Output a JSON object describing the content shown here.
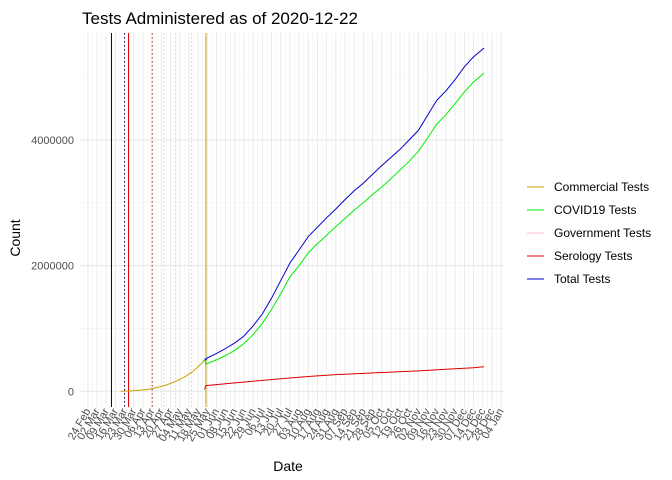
{
  "chart_data": {
    "type": "line",
    "title": "Tests Administered as of 2020-12-22",
    "xlabel": "Date",
    "ylabel": "Count",
    "grid": true,
    "legend_position": "right",
    "xlim": [
      "2020-02-24",
      "2021-01-04"
    ],
    "ylim": [
      -250000,
      5700000
    ],
    "y_ticks": [
      0,
      2000000,
      4000000
    ],
    "x_ticks": [
      "24 Feb",
      "02 Mar",
      "09 Mar",
      "16 Mar",
      "23 Mar",
      "30 Mar",
      "06 Apr",
      "13 Apr",
      "20 Apr",
      "27 Apr",
      "04 May",
      "11 May",
      "18 May",
      "25 May",
      "01 Jun",
      "08 Jun",
      "15 Jun",
      "22 Jun",
      "29 Jun",
      "06 Jul",
      "13 Jul",
      "20 Jul",
      "27 Jul",
      "03 Aug",
      "10 Aug",
      "17 Aug",
      "24 Aug",
      "31 Aug",
      "07 Sep",
      "14 Sep",
      "21 Sep",
      "28 Sep",
      "05 Oct",
      "12 Oct",
      "19 Oct",
      "26 Oct",
      "02 Nov",
      "09 Nov",
      "16 Nov",
      "23 Nov",
      "30 Nov",
      "07 Dec",
      "14 Dec",
      "21 Dec",
      "28 Dec",
      "04 Jan"
    ],
    "series": [
      {
        "name": "Commercial Tests",
        "color": "#c8a000",
        "x": [
          "2020-03-20",
          "2020-03-27",
          "2020-04-03",
          "2020-04-10",
          "2020-04-17",
          "2020-04-24",
          "2020-05-01",
          "2020-05-08",
          "2020-05-15",
          "2020-05-20",
          "2020-05-23"
        ],
        "values": [
          0,
          5000,
          15000,
          30000,
          60000,
          100000,
          160000,
          230000,
          330000,
          430000,
          500000
        ]
      },
      {
        "name": "COVID19 Tests",
        "color": "#00ee00",
        "x": [
          "2020-05-23",
          "2020-05-24",
          "2020-05-25",
          "2020-06-01",
          "2020-06-08",
          "2020-06-15",
          "2020-06-22",
          "2020-06-29",
          "2020-07-06",
          "2020-07-13",
          "2020-07-20",
          "2020-07-27",
          "2020-08-03",
          "2020-08-10",
          "2020-08-17",
          "2020-08-24",
          "2020-08-31",
          "2020-09-07",
          "2020-09-14",
          "2020-09-21",
          "2020-09-28",
          "2020-10-05",
          "2020-10-12",
          "2020-10-19",
          "2020-10-26",
          "2020-11-02",
          "2020-11-09",
          "2020-11-16",
          "2020-11-23",
          "2020-11-30",
          "2020-12-07",
          "2020-12-14",
          "2020-12-22"
        ],
        "values": [
          500000,
          430000,
          440000,
          500000,
          570000,
          650000,
          760000,
          900000,
          1080000,
          1300000,
          1550000,
          1820000,
          2000000,
          2200000,
          2350000,
          2480000,
          2620000,
          2750000,
          2880000,
          3000000,
          3130000,
          3250000,
          3380000,
          3520000,
          3660000,
          3820000,
          4030000,
          4250000,
          4400000,
          4580000,
          4760000,
          4920000,
          5060000
        ]
      },
      {
        "name": "Government Tests",
        "color": "#ffc0cb",
        "x": [],
        "values": []
      },
      {
        "name": "Serology Tests",
        "color": "#dd0000",
        "x": [
          "2020-05-23",
          "2020-05-24",
          "2020-06-08",
          "2020-06-29",
          "2020-07-20",
          "2020-08-10",
          "2020-08-31",
          "2020-09-21",
          "2020-10-12",
          "2020-11-02",
          "2020-11-23",
          "2020-12-14",
          "2020-12-22"
        ],
        "values": [
          30000,
          90000,
          120000,
          160000,
          200000,
          235000,
          265000,
          285000,
          305000,
          325000,
          350000,
          375000,
          390000
        ]
      },
      {
        "name": "Total Tests",
        "color": "#0000cc",
        "x": [
          "2020-05-23",
          "2020-05-24",
          "2020-05-25",
          "2020-06-01",
          "2020-06-08",
          "2020-06-15",
          "2020-06-22",
          "2020-06-29",
          "2020-07-06",
          "2020-07-13",
          "2020-07-20",
          "2020-07-27",
          "2020-08-03",
          "2020-08-10",
          "2020-08-17",
          "2020-08-24",
          "2020-08-31",
          "2020-09-07",
          "2020-09-14",
          "2020-09-21",
          "2020-09-28",
          "2020-10-05",
          "2020-10-12",
          "2020-10-19",
          "2020-10-26",
          "2020-11-02",
          "2020-11-09",
          "2020-11-16",
          "2020-11-23",
          "2020-11-30",
          "2020-12-07",
          "2020-12-14",
          "2020-12-22"
        ],
        "values": [
          520000,
          500000,
          530000,
          600000,
          680000,
          770000,
          880000,
          1040000,
          1230000,
          1480000,
          1760000,
          2040000,
          2250000,
          2460000,
          2610000,
          2760000,
          2900000,
          3050000,
          3190000,
          3310000,
          3450000,
          3590000,
          3720000,
          3850000,
          4000000,
          4150000,
          4390000,
          4630000,
          4780000,
          4960000,
          5160000,
          5320000,
          5460000
        ]
      }
    ],
    "reference_lines": [
      {
        "x": "2020-03-13",
        "color": "#000080",
        "style": "solid"
      },
      {
        "x": "2020-03-23",
        "color": "#000080",
        "style": "dotted"
      },
      {
        "x": "2020-03-26",
        "color": "#dd0000",
        "style": "solid"
      },
      {
        "x": "2020-04-13",
        "color": "#dd0000",
        "style": "dotted"
      },
      {
        "x": "2020-04-22",
        "color": "#ffc0cb",
        "style": "dotted"
      },
      {
        "x": "2020-05-01",
        "color": "#ffc0cb",
        "style": "dotted"
      },
      {
        "x": "2020-05-13",
        "color": "#ffc0cb",
        "style": "dotted"
      },
      {
        "x": "2020-05-24",
        "color": "#c8a000",
        "style": "solid"
      }
    ]
  }
}
